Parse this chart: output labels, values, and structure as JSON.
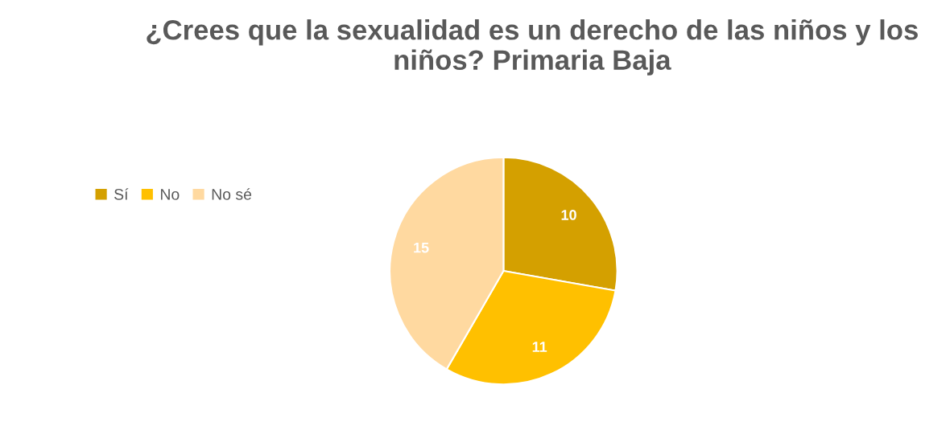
{
  "chart_data": {
    "type": "pie",
    "title": "¿Crees que la sexualidad es un derecho de las niños y los niños? Primaria Baja",
    "categories": [
      "Sí",
      "No",
      "No sé"
    ],
    "values": [
      10,
      11,
      15
    ],
    "colors": [
      "#d4a000",
      "#ffc000",
      "#ffd9a0"
    ],
    "data_labels": true,
    "legend": "left"
  }
}
